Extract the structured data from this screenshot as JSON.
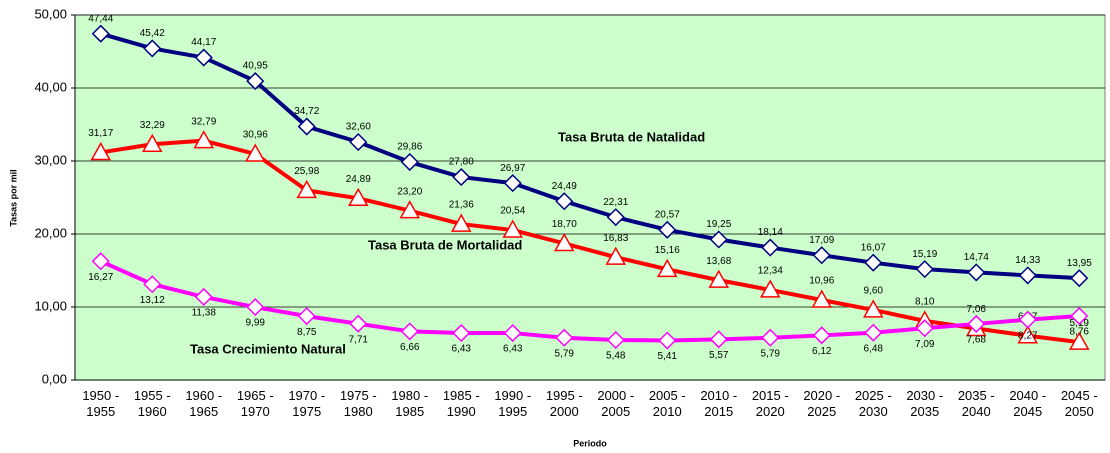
{
  "chart_data": {
    "type": "line",
    "x_label": "Periodo",
    "y_label": "Tasas por mil",
    "categories": [
      "1950 - 1955",
      "1955 - 1960",
      "1960 - 1965",
      "1965 - 1970",
      "1970 - 1975",
      "1975 - 1980",
      "1980 - 1985",
      "1985 - 1990",
      "1990 - 1995",
      "1995 - 2000",
      "2000 - 2005",
      "2005 - 2010",
      "2010 - 2015",
      "2015 - 2020",
      "2020 - 2025",
      "2025 - 2030",
      "2030 - 2035",
      "2035 - 2040",
      "2040 - 2045",
      "2045 - 2050"
    ],
    "ylim": [
      0,
      50
    ],
    "yticks": [
      {
        "value": 0,
        "label": "0,00"
      },
      {
        "value": 10,
        "label": "10,00"
      },
      {
        "value": 20,
        "label": "20,00"
      },
      {
        "value": 30,
        "label": "30,00"
      },
      {
        "value": 40,
        "label": "40,00"
      },
      {
        "value": 50,
        "label": "50,00"
      }
    ],
    "grid": true,
    "series": [
      {
        "name": "Tasa Bruta de Natalidad",
        "color": "#000080",
        "marker": "diamond",
        "values": [
          47.44,
          45.42,
          44.17,
          40.95,
          34.72,
          32.6,
          29.86,
          27.8,
          26.97,
          24.49,
          22.31,
          20.57,
          19.25,
          18.14,
          17.09,
          16.07,
          15.19,
          14.74,
          14.33,
          13.95
        ],
        "value_labels": [
          "47,44",
          "45,42",
          "44,17",
          "40,95",
          "34,72",
          "32,60",
          "29,86",
          "27,80",
          "26,97",
          "24,49",
          "22,31",
          "20,57",
          "19,25",
          "18,14",
          "17,09",
          "16,07",
          "15,19",
          "14,74",
          "14,33",
          "13,95"
        ]
      },
      {
        "name": "Tasa Bruta de Mortalidad",
        "color": "#ff0000",
        "marker": "triangle",
        "values": [
          31.17,
          32.29,
          32.79,
          30.96,
          25.98,
          24.89,
          23.2,
          21.36,
          20.54,
          18.7,
          16.83,
          15.16,
          13.68,
          12.34,
          10.96,
          9.6,
          8.1,
          7.06,
          6.07,
          5.19
        ],
        "value_labels": [
          "31,17",
          "32,29",
          "32,79",
          "30,96",
          "25,98",
          "24,89",
          "23,20",
          "21,36",
          "20,54",
          "18,70",
          "16,83",
          "15,16",
          "13,68",
          "12,34",
          "10,96",
          "9,60",
          "8,10",
          "7,06",
          "6,07",
          "5,19"
        ]
      },
      {
        "name": "Tasa Crecimiento Natural",
        "color": "#ff00ff",
        "marker": "diamond",
        "values": [
          16.27,
          13.12,
          11.38,
          9.99,
          8.75,
          7.71,
          6.66,
          6.43,
          6.43,
          5.79,
          5.48,
          5.41,
          5.57,
          5.79,
          6.12,
          6.48,
          7.09,
          7.68,
          8.27,
          8.76
        ],
        "value_labels": [
          "16,27",
          "13,12",
          "11,38",
          "9,99",
          "8,75",
          "7,71",
          "6,66",
          "6,43",
          "6,43",
          "5,79",
          "5,48",
          "5,41",
          "5,57",
          "5,79",
          "6,12",
          "6,48",
          "7,09",
          "7,68",
          "8,27",
          "8,76"
        ]
      }
    ]
  }
}
